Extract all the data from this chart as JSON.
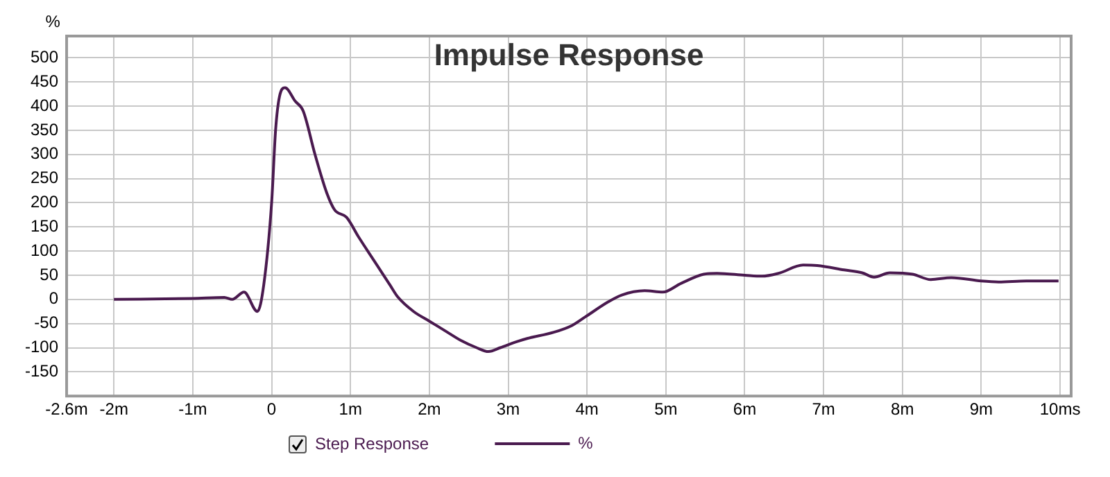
{
  "chart_data": {
    "type": "line",
    "title": "Impulse Response",
    "ylabel": "%",
    "annotations": [
      "Step Response"
    ],
    "xlim": [
      -2.6,
      10.14
    ],
    "ylim": [
      -200,
      545
    ],
    "xticks": [
      {
        "value": -2.6,
        "label": "-2.6m"
      },
      {
        "value": -2,
        "label": "-2m"
      },
      {
        "value": -1,
        "label": "-1m"
      },
      0,
      {
        "value": 1,
        "label": "1m"
      },
      {
        "value": 2,
        "label": "2m"
      },
      {
        "value": 3,
        "label": "3m"
      },
      {
        "value": 4,
        "label": "4m"
      },
      {
        "value": 5,
        "label": "5m"
      },
      {
        "value": 6,
        "label": "6m"
      },
      {
        "value": 7,
        "label": "7m"
      },
      {
        "value": 8,
        "label": "8m"
      },
      {
        "value": 9,
        "label": "9m"
      },
      {
        "value": 10,
        "label": "10ms"
      }
    ],
    "yticks": [
      -150,
      -100,
      -50,
      0,
      50,
      100,
      150,
      200,
      250,
      300,
      350,
      400,
      450,
      500
    ],
    "grid": true,
    "legend": "bottom",
    "marker": "none",
    "line_style": "solid",
    "series": [
      {
        "name": "%",
        "color": "#4a1a4f",
        "x": [
          -2,
          -1,
          -0.6,
          -0.5,
          -0.35,
          -0.18,
          -0.1,
          0,
          0.05,
          0.1,
          0.17,
          0.3,
          0.4,
          0.55,
          0.7,
          0.8,
          0.95,
          1.1,
          1.3,
          1.5,
          1.6,
          1.8,
          2.0,
          2.2,
          2.4,
          2.6,
          2.75,
          2.9,
          3.1,
          3.24,
          3.58,
          3.81,
          3.98,
          4.27,
          4.44,
          4.73,
          4.96,
          5.19,
          5.48,
          5.65,
          6.0,
          6.22,
          6.43,
          6.74,
          6.92,
          7.26,
          7.49,
          7.64,
          7.84,
          8.13,
          8.36,
          8.62,
          9.0,
          9.22,
          9.57,
          9.98
        ],
        "values": [
          0,
          2,
          4,
          0,
          15,
          -25,
          30,
          200,
          350,
          420,
          438,
          410,
          390,
          300,
          220,
          185,
          170,
          130,
          80,
          30,
          5,
          -25,
          -45,
          -65,
          -85,
          -100,
          -108,
          -100,
          -88,
          -81,
          -68,
          -54,
          -36,
          -5,
          9,
          18,
          15,
          33,
          52,
          54,
          50,
          48,
          54,
          71,
          70,
          61,
          55,
          46,
          55,
          52,
          41,
          45,
          38,
          36,
          38,
          38
        ]
      }
    ]
  }
}
